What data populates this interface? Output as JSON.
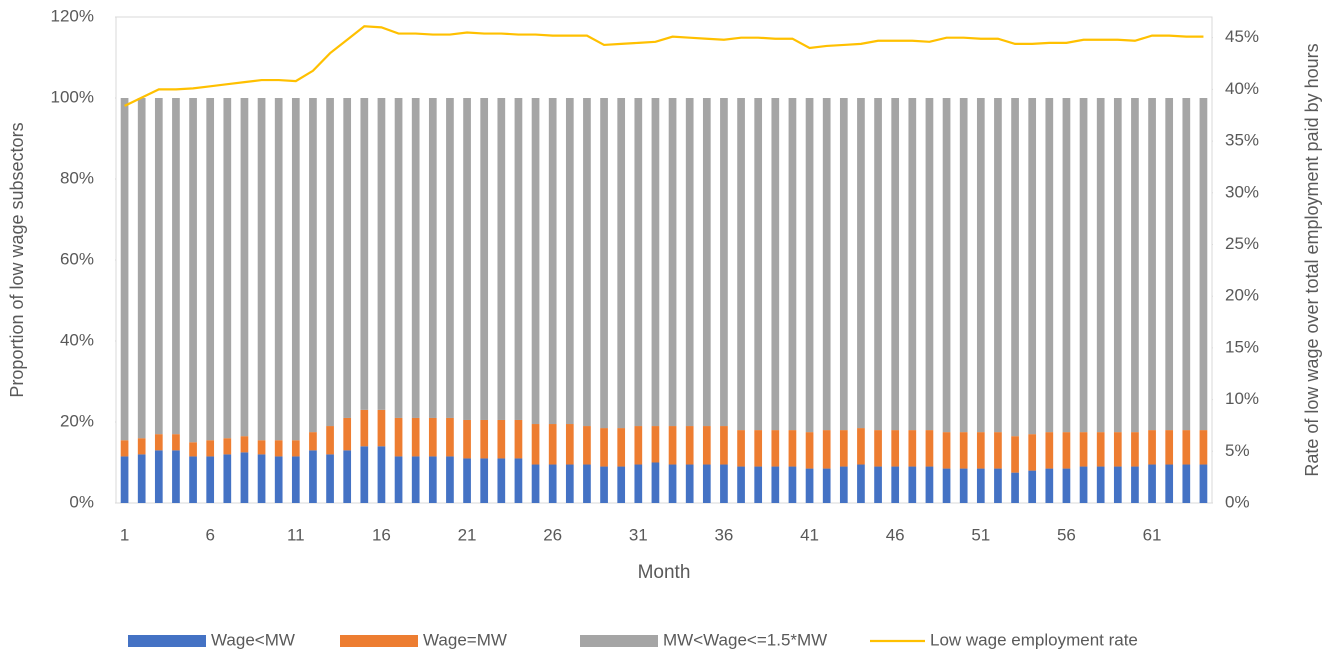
{
  "chart_data": {
    "type": "bar",
    "stacked": true,
    "x_label": "Month",
    "y_label": "Proportion of low wage subsectors",
    "y2_label": "Rate of low wage over total employment paid by hours",
    "categories": [
      "1",
      null,
      null,
      null,
      null,
      "6",
      null,
      null,
      null,
      null,
      "11",
      null,
      null,
      null,
      null,
      "16",
      null,
      null,
      null,
      null,
      "21",
      null,
      null,
      null,
      null,
      "26",
      null,
      null,
      null,
      null,
      "31",
      null,
      null,
      null,
      null,
      "36",
      null,
      null,
      null,
      null,
      "41",
      null,
      null,
      null,
      null,
      "46",
      null,
      null,
      null,
      null,
      "51",
      null,
      null,
      null,
      null,
      "56",
      null,
      null,
      null,
      null,
      "61",
      null,
      null,
      null
    ],
    "ylim": [
      0,
      120
    ],
    "yticks": [
      {
        "value": 0,
        "label": "0%"
      },
      {
        "value": 20,
        "label": "20%"
      },
      {
        "value": 40,
        "label": "40%"
      },
      {
        "value": 60,
        "label": "60%"
      },
      {
        "value": 80,
        "label": "80%"
      },
      {
        "value": 100,
        "label": "100%"
      },
      {
        "value": 120,
        "label": "120%"
      }
    ],
    "y2lim": [
      0,
      47
    ],
    "y2ticks": [
      {
        "value": 0,
        "label": "0%"
      },
      {
        "value": 5,
        "label": "5%"
      },
      {
        "value": 10,
        "label": "10%"
      },
      {
        "value": 15,
        "label": "15%"
      },
      {
        "value": 20,
        "label": "20%"
      },
      {
        "value": 25,
        "label": "25%"
      },
      {
        "value": 30,
        "label": "30%"
      },
      {
        "value": 35,
        "label": "35%"
      },
      {
        "value": 40,
        "label": "40%"
      },
      {
        "value": 45,
        "label": "45%"
      }
    ],
    "series": [
      {
        "name": "Wage<MW",
        "color": "#4472c4",
        "values": [
          11.5,
          12,
          13,
          13,
          11.5,
          11.5,
          12,
          12.5,
          12,
          11.5,
          11.5,
          13,
          12,
          13,
          14,
          14,
          11.5,
          11.5,
          11.5,
          11.5,
          11,
          11,
          11,
          11,
          9.5,
          9.5,
          9.5,
          9.5,
          9,
          9,
          9.5,
          10,
          9.5,
          9.5,
          9.5,
          9.5,
          9,
          9,
          9,
          9,
          8.5,
          8.5,
          9,
          9.5,
          9,
          9,
          9,
          9,
          8.5,
          8.5,
          8.5,
          8.5,
          7.5,
          8,
          8.5,
          8.5,
          9,
          9,
          9,
          9,
          9.5,
          9.5,
          9.5,
          9.5
        ]
      },
      {
        "name": "Wage=MW",
        "color": "#ed7d31",
        "values": [
          4,
          4,
          4,
          4,
          3.5,
          4,
          4,
          4,
          3.5,
          4,
          4,
          4.5,
          7,
          8,
          9,
          9,
          9.5,
          9.5,
          9.5,
          9.5,
          9.5,
          9.5,
          9.5,
          9.5,
          10,
          10,
          10,
          9.5,
          9.5,
          9.5,
          9.5,
          9,
          9.5,
          9.5,
          9.5,
          9.5,
          9,
          9,
          9,
          9,
          9,
          9.5,
          9,
          9,
          9,
          9,
          9,
          9,
          9,
          9,
          9,
          9,
          9,
          9,
          9,
          9,
          8.5,
          8.5,
          8.5,
          8.5,
          8.5,
          8.5,
          8.5,
          8.5
        ]
      },
      {
        "name": "MW<Wage<=1.5*MW",
        "color": "#a5a5a5",
        "values": [
          84.5,
          84,
          83,
          83,
          85,
          84.5,
          84,
          83.5,
          84.5,
          84.5,
          84.5,
          82.5,
          81,
          79,
          77,
          77,
          79,
          79,
          79,
          79,
          79.5,
          79.5,
          79.5,
          79.5,
          80.5,
          80.5,
          80.5,
          81,
          81.5,
          81.5,
          81,
          81,
          81,
          81,
          81,
          81,
          82,
          82,
          82,
          82,
          82.5,
          82,
          82,
          81.5,
          82,
          82,
          82,
          82,
          82.5,
          82.5,
          82.5,
          82.5,
          83.5,
          83,
          82.5,
          82.5,
          82.5,
          82.5,
          82.5,
          82.5,
          82,
          82,
          82,
          82
        ]
      },
      {
        "name": "Low wage employment rate",
        "color": "#ffc000",
        "type": "line",
        "axis": "y2",
        "values": [
          38.4,
          39.2,
          40,
          40,
          40.1,
          40.3,
          40.5,
          40.7,
          40.9,
          40.9,
          40.8,
          41.8,
          43.5,
          44.8,
          46.1,
          46,
          45.4,
          45.4,
          45.3,
          45.3,
          45.5,
          45.4,
          45.4,
          45.3,
          45.3,
          45.2,
          45.2,
          45.2,
          44.3,
          44.4,
          44.5,
          44.6,
          45.1,
          45,
          44.9,
          44.8,
          45,
          45,
          44.9,
          44.9,
          44,
          44.2,
          44.3,
          44.4,
          44.7,
          44.7,
          44.7,
          44.6,
          45,
          45,
          44.9,
          44.9,
          44.4,
          44.4,
          44.5,
          44.5,
          44.8,
          44.8,
          44.8,
          44.7,
          45.2,
          45.2,
          45.1,
          45.1
        ]
      }
    ]
  }
}
